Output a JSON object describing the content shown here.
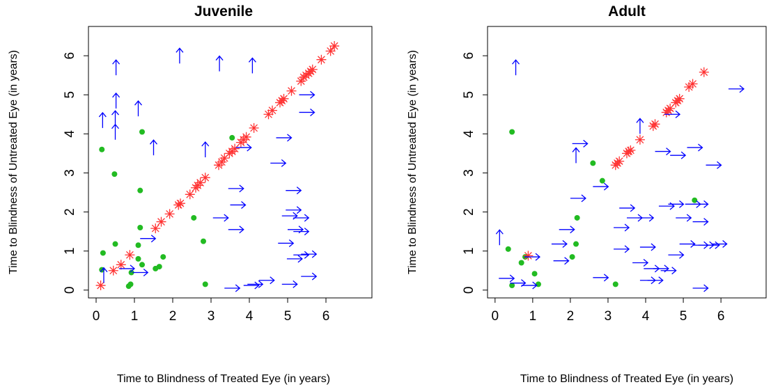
{
  "chart_data": [
    {
      "type": "scatter",
      "title": "Juvenile",
      "xlabel": "Time to Blindness of Treated Eye (in years)",
      "ylabel": "Time to Blindness of Untreated Eye (in years)",
      "xlim": [
        -0.2,
        7.2
      ],
      "ylim": [
        -0.2,
        6.75
      ],
      "xticks": [
        "0",
        "1",
        "2",
        "3",
        "4",
        "5",
        "6"
      ],
      "yticks": [
        "0",
        "1",
        "2",
        "3",
        "4",
        "5",
        "6"
      ],
      "grid": false,
      "legend": "none",
      "series": [
        {
          "marker": "filled-circle",
          "color": "#22bb22",
          "points": [
            [
              0.15,
              3.6
            ],
            [
              0.18,
              0.95
            ],
            [
              0.15,
              0.52
            ],
            [
              0.5,
              1.18
            ],
            [
              0.48,
              2.97
            ],
            [
              0.85,
              0.1
            ],
            [
              0.9,
              0.15
            ],
            [
              0.92,
              0.45
            ],
            [
              1.1,
              0.8
            ],
            [
              1.1,
              1.15
            ],
            [
              1.15,
              1.6
            ],
            [
              1.15,
              2.55
            ],
            [
              1.2,
              4.05
            ],
            [
              1.2,
              0.65
            ],
            [
              1.55,
              0.55
            ],
            [
              1.65,
              0.6
            ],
            [
              1.75,
              0.85
            ],
            [
              2.55,
              1.85
            ],
            [
              2.8,
              1.25
            ],
            [
              2.85,
              0.15
            ],
            [
              3.55,
              3.9
            ]
          ]
        },
        {
          "marker": "asterisk",
          "color": "#ff3333",
          "points": [
            [
              0.12,
              0.12
            ],
            [
              0.45,
              0.5
            ],
            [
              0.65,
              0.65
            ],
            [
              0.88,
              0.9
            ],
            [
              1.55,
              1.58
            ],
            [
              1.7,
              1.75
            ],
            [
              1.92,
              1.95
            ],
            [
              2.15,
              2.18
            ],
            [
              2.2,
              2.22
            ],
            [
              2.45,
              2.45
            ],
            [
              2.6,
              2.62
            ],
            [
              2.65,
              2.68
            ],
            [
              2.72,
              2.75
            ],
            [
              2.85,
              2.88
            ],
            [
              3.2,
              3.2
            ],
            [
              3.28,
              3.28
            ],
            [
              3.35,
              3.38
            ],
            [
              3.48,
              3.5
            ],
            [
              3.55,
              3.55
            ],
            [
              3.62,
              3.62
            ],
            [
              3.78,
              3.78
            ],
            [
              3.85,
              3.85
            ],
            [
              3.92,
              3.92
            ],
            [
              4.12,
              4.15
            ],
            [
              4.5,
              4.5
            ],
            [
              4.6,
              4.6
            ],
            [
              4.8,
              4.8
            ],
            [
              4.85,
              4.85
            ],
            [
              4.9,
              4.9
            ],
            [
              5.1,
              5.1
            ],
            [
              5.35,
              5.35
            ],
            [
              5.42,
              5.45
            ],
            [
              5.48,
              5.5
            ],
            [
              5.55,
              5.55
            ],
            [
              5.6,
              5.6
            ],
            [
              5.65,
              5.65
            ],
            [
              5.88,
              5.9
            ],
            [
              6.12,
              6.12
            ],
            [
              6.22,
              6.25
            ]
          ]
        },
        {
          "marker": "up-arrow",
          "color": "#0000ff",
          "points": [
            [
              0.17,
              4.15
            ],
            [
              0.5,
              3.85
            ],
            [
              0.5,
              4.2
            ],
            [
              0.52,
              4.65
            ],
            [
              0.52,
              5.5
            ],
            [
              1.1,
              4.45
            ],
            [
              1.5,
              3.45
            ],
            [
              2.18,
              5.8
            ],
            [
              2.85,
              3.4
            ],
            [
              3.22,
              5.6
            ],
            [
              4.08,
              5.55
            ],
            [
              0.2,
              0.18
            ]
          ]
        },
        {
          "marker": "right-arrow",
          "color": "#0000ff",
          "points": [
            [
              0.6,
              0.55
            ],
            [
              0.95,
              0.45
            ],
            [
              1.15,
              1.32
            ],
            [
              3.05,
              1.85
            ],
            [
              3.35,
              0.05
            ],
            [
              3.45,
              1.55
            ],
            [
              3.45,
              2.6
            ],
            [
              3.5,
              2.18
            ],
            [
              3.85,
              0.12
            ],
            [
              3.95,
              0.15
            ],
            [
              3.65,
              3.65
            ],
            [
              4.25,
              0.25
            ],
            [
              4.55,
              3.25
            ],
            [
              4.7,
              3.9
            ],
            [
              4.75,
              1.2
            ],
            [
              4.85,
              0.15
            ],
            [
              4.85,
              1.9
            ],
            [
              4.95,
              2.55
            ],
            [
              4.95,
              2.05
            ],
            [
              4.98,
              0.8
            ],
            [
              5.0,
              1.55
            ],
            [
              5.15,
              0.9
            ],
            [
              5.15,
              1.5
            ],
            [
              5.15,
              1.85
            ],
            [
              5.3,
              4.55
            ],
            [
              5.3,
              5.0
            ],
            [
              5.35,
              0.35
            ],
            [
              5.35,
              0.92
            ]
          ]
        }
      ]
    },
    {
      "type": "scatter",
      "title": "Adult",
      "xlabel": "Time to Blindness of Treated Eye (in years)",
      "ylabel": "Time to Blindness of Untreated Eye (in years)",
      "xlim": [
        -0.2,
        7.2
      ],
      "ylim": [
        -0.2,
        6.75
      ],
      "xticks": [
        "0",
        "1",
        "2",
        "3",
        "4",
        "5",
        "6"
      ],
      "yticks": [
        "0",
        "1",
        "2",
        "3",
        "4",
        "5",
        "6"
      ],
      "grid": false,
      "legend": "none",
      "series": [
        {
          "marker": "filled-circle",
          "color": "#22bb22",
          "points": [
            [
              0.35,
              1.05
            ],
            [
              0.45,
              4.05
            ],
            [
              0.45,
              0.12
            ],
            [
              0.7,
              0.7
            ],
            [
              0.8,
              0.85
            ],
            [
              1.05,
              0.42
            ],
            [
              1.15,
              0.15
            ],
            [
              2.05,
              0.85
            ],
            [
              2.15,
              1.18
            ],
            [
              2.18,
              1.85
            ],
            [
              2.6,
              3.25
            ],
            [
              2.85,
              2.8
            ],
            [
              3.2,
              0.15
            ],
            [
              5.3,
              2.3
            ]
          ]
        },
        {
          "marker": "asterisk",
          "color": "#ff3333",
          "points": [
            [
              0.88,
              0.88
            ],
            [
              3.2,
              3.2
            ],
            [
              3.25,
              3.25
            ],
            [
              3.3,
              3.3
            ],
            [
              3.5,
              3.5
            ],
            [
              3.55,
              3.55
            ],
            [
              3.6,
              3.58
            ],
            [
              3.85,
              3.85
            ],
            [
              4.2,
              4.2
            ],
            [
              4.25,
              4.25
            ],
            [
              4.55,
              4.55
            ],
            [
              4.6,
              4.6
            ],
            [
              4.65,
              4.65
            ],
            [
              4.8,
              4.8
            ],
            [
              4.85,
              4.85
            ],
            [
              4.9,
              4.9
            ],
            [
              5.15,
              5.2
            ],
            [
              5.25,
              5.28
            ],
            [
              5.55,
              5.58
            ]
          ]
        },
        {
          "marker": "up-arrow",
          "color": "#0000ff",
          "points": [
            [
              0.12,
              1.15
            ],
            [
              0.55,
              5.5
            ],
            [
              2.15,
              3.25
            ],
            [
              3.85,
              4.0
            ]
          ]
        },
        {
          "marker": "right-arrow",
          "color": "#0000ff",
          "points": [
            [
              0.1,
              0.3
            ],
            [
              0.4,
              0.18
            ],
            [
              0.7,
              0.12
            ],
            [
              0.78,
              0.85
            ],
            [
              1.5,
              1.18
            ],
            [
              1.55,
              0.75
            ],
            [
              1.7,
              1.55
            ],
            [
              2.05,
              3.75
            ],
            [
              2.0,
              2.35
            ],
            [
              2.6,
              2.65
            ],
            [
              2.6,
              0.32
            ],
            [
              3.15,
              1.6
            ],
            [
              3.15,
              1.05
            ],
            [
              3.3,
              2.1
            ],
            [
              3.5,
              1.85
            ],
            [
              3.65,
              0.7
            ],
            [
              3.8,
              1.85
            ],
            [
              3.85,
              0.25
            ],
            [
              3.85,
              1.1
            ],
            [
              3.95,
              0.55
            ],
            [
              4.05,
              0.25
            ],
            [
              4.2,
              0.55
            ],
            [
              4.25,
              3.55
            ],
            [
              4.35,
              2.15
            ],
            [
              4.4,
              0.5
            ],
            [
              4.5,
              4.5
            ],
            [
              4.6,
              2.2
            ],
            [
              4.6,
              0.9
            ],
            [
              4.65,
              3.45
            ],
            [
              4.8,
              1.85
            ],
            [
              4.9,
              1.18
            ],
            [
              5.05,
              2.2
            ],
            [
              5.1,
              3.65
            ],
            [
              5.25,
              0.05
            ],
            [
              5.25,
              1.15
            ],
            [
              5.25,
              1.75
            ],
            [
              5.25,
              2.2
            ],
            [
              5.4,
              1.15
            ],
            [
              5.55,
              1.15
            ],
            [
              5.6,
              3.2
            ],
            [
              5.75,
              1.18
            ],
            [
              6.2,
              5.15
            ]
          ]
        }
      ]
    }
  ]
}
